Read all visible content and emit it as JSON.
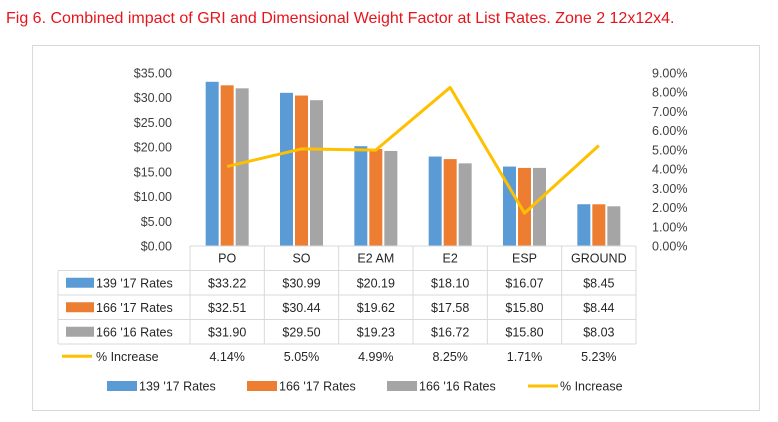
{
  "title": "Fig 6. Combined impact of GRI and Dimensional Weight Factor at List Rates. Zone 2 12x12x4.",
  "colors": {
    "title": "#e8141c",
    "series": [
      "#5b9bd5",
      "#ed7d31",
      "#a5a5a5"
    ],
    "line": "#ffc000",
    "axis_text": "#404040",
    "grid": "#d9d9d9"
  },
  "chart_data": {
    "type": "bar",
    "categories": [
      "PO",
      "SO",
      "E2 AM",
      "E2",
      "ESP",
      "GROUND"
    ],
    "series": [
      {
        "name": "139 '17 Rates",
        "values": [
          33.22,
          30.99,
          20.19,
          18.1,
          16.07,
          8.45
        ]
      },
      {
        "name": "166 '17 Rates",
        "values": [
          32.51,
          30.44,
          19.62,
          17.58,
          15.8,
          8.44
        ]
      },
      {
        "name": "166 '16 Rates",
        "values": [
          31.9,
          29.5,
          19.23,
          16.72,
          15.8,
          8.03
        ]
      }
    ],
    "line_series": {
      "name": "% Increase",
      "values": [
        4.14,
        5.05,
        4.99,
        8.25,
        1.71,
        5.23
      ],
      "axis": "secondary"
    },
    "y_ticks": [
      "$0.00",
      "$5.00",
      "$10.00",
      "$15.00",
      "$20.00",
      "$25.00",
      "$30.00",
      "$35.00"
    ],
    "ylim": [
      0,
      35
    ],
    "y2_ticks": [
      "0.00%",
      "1.00%",
      "2.00%",
      "3.00%",
      "4.00%",
      "5.00%",
      "6.00%",
      "7.00%",
      "8.00%",
      "9.00%"
    ],
    "y2lim": [
      0,
      9
    ],
    "table": {
      "rows": [
        {
          "label": "139 '17 Rates",
          "cells": [
            "$33.22",
            "$30.99",
            "$20.19",
            "$18.10",
            "$16.07",
            "$8.45"
          ]
        },
        {
          "label": "166 '17 Rates",
          "cells": [
            "$32.51",
            "$30.44",
            "$19.62",
            "$17.58",
            "$15.80",
            "$8.44"
          ]
        },
        {
          "label": "166 '16 Rates",
          "cells": [
            "$31.90",
            "$29.50",
            "$19.23",
            "$16.72",
            "$15.80",
            "$8.03"
          ]
        },
        {
          "label": "% Increase",
          "cells": [
            "4.14%",
            "5.05%",
            "4.99%",
            "8.25%",
            "1.71%",
            "5.23%"
          ]
        }
      ]
    },
    "legend": [
      "139 '17 Rates",
      "166 '17 Rates",
      "166 '16 Rates",
      "% Increase"
    ],
    "legend_position": "bottom",
    "grid": false
  }
}
